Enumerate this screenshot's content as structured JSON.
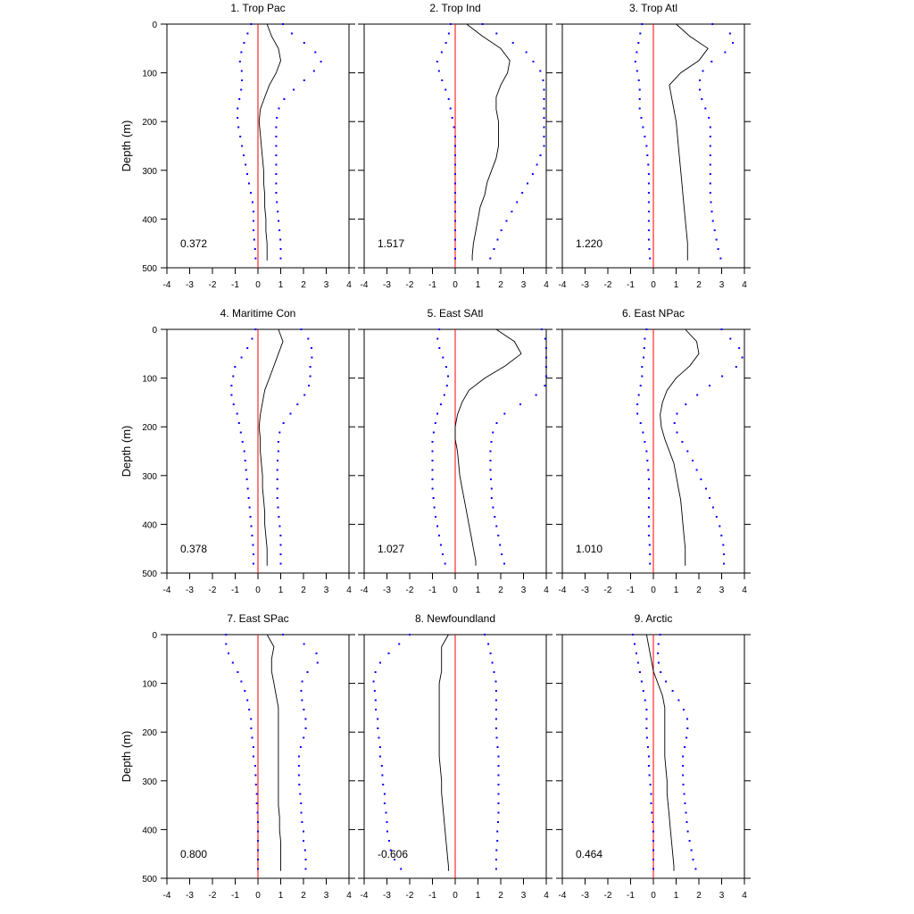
{
  "chart_data": {
    "type": "line",
    "ylabel": "Depth (m)",
    "xlim": [
      -4,
      4
    ],
    "ylim": [
      0,
      500
    ],
    "y_inverted": true,
    "x_ticks": [
      "-4",
      "-3",
      "-2",
      "-1",
      "0",
      "1",
      "2",
      "3",
      "4"
    ],
    "y_ticks": [
      "0",
      "100",
      "200",
      "300",
      "400",
      "500"
    ],
    "depths": [
      0,
      25,
      50,
      75,
      100,
      125,
      150,
      175,
      200,
      225,
      250,
      275,
      300,
      325,
      350,
      375,
      400,
      425,
      450,
      475,
      485
    ],
    "colors": {
      "mean": "#000000",
      "bounds": "#0000ff",
      "zero_line": "#ff0000"
    },
    "panels": [
      {
        "title": "1. Trop Pac",
        "stat": "0.372",
        "mean": [
          0.4,
          0.6,
          0.9,
          1.0,
          0.8,
          0.5,
          0.3,
          0.1,
          0.05,
          0.1,
          0.15,
          0.2,
          0.25,
          0.25,
          0.3,
          0.3,
          0.35,
          0.35,
          0.4,
          0.4,
          0.4
        ],
        "lower": [
          -0.3,
          -0.5,
          -0.7,
          -0.8,
          -0.7,
          -0.7,
          -0.8,
          -0.9,
          -0.9,
          -0.8,
          -0.7,
          -0.6,
          -0.5,
          -0.4,
          -0.3,
          -0.2,
          -0.2,
          -0.2,
          -0.15,
          -0.1,
          -0.1
        ],
        "upper": [
          1.1,
          1.6,
          2.4,
          2.8,
          2.4,
          1.8,
          1.2,
          0.9,
          0.8,
          0.8,
          0.8,
          0.8,
          0.8,
          0.8,
          0.8,
          0.85,
          0.9,
          0.95,
          1.0,
          1.0,
          1.0
        ]
      },
      {
        "title": "2. Trop Ind",
        "stat": "1.517",
        "mean": [
          0.5,
          1.2,
          2.0,
          2.4,
          2.3,
          2.0,
          1.8,
          1.8,
          1.9,
          1.9,
          1.9,
          1.8,
          1.6,
          1.4,
          1.3,
          1.1,
          1.0,
          0.9,
          0.8,
          0.75,
          0.75
        ],
        "lower": [
          -0.2,
          -0.3,
          -0.5,
          -0.8,
          -0.7,
          -0.5,
          -0.3,
          -0.2,
          -0.1,
          0.0,
          0.0,
          0.0,
          0.0,
          0.0,
          0.0,
          0.0,
          0.0,
          0.0,
          0.0,
          0.0,
          0.0
        ],
        "upper": [
          1.2,
          2.0,
          3.0,
          3.4,
          3.8,
          3.9,
          3.9,
          3.9,
          3.9,
          3.9,
          3.9,
          3.7,
          3.5,
          3.2,
          2.9,
          2.6,
          2.3,
          2.0,
          1.8,
          1.6,
          1.5
        ]
      },
      {
        "title": "3. Trop Atl",
        "stat": "1.220",
        "mean": [
          1.0,
          1.6,
          2.4,
          2.0,
          1.2,
          0.7,
          0.8,
          0.9,
          1.0,
          1.05,
          1.1,
          1.15,
          1.2,
          1.25,
          1.3,
          1.35,
          1.4,
          1.45,
          1.5,
          1.5,
          1.5
        ],
        "lower": [
          -0.5,
          -0.6,
          -0.7,
          -0.8,
          -0.7,
          -0.6,
          -0.6,
          -0.6,
          -0.5,
          -0.4,
          -0.3,
          -0.25,
          -0.2,
          -0.2,
          -0.2,
          -0.2,
          -0.2,
          -0.2,
          -0.2,
          -0.15,
          -0.15
        ],
        "upper": [
          2.6,
          3.6,
          3.4,
          2.6,
          2.1,
          2.0,
          2.1,
          2.3,
          2.5,
          2.5,
          2.5,
          2.5,
          2.5,
          2.5,
          2.5,
          2.55,
          2.6,
          2.7,
          2.8,
          2.9,
          3.0
        ]
      },
      {
        "title": "4. Maritime Con",
        "stat": "0.378",
        "mean": [
          0.9,
          1.1,
          0.9,
          0.7,
          0.5,
          0.3,
          0.2,
          0.1,
          0.05,
          0.1,
          0.1,
          0.15,
          0.2,
          0.2,
          0.25,
          0.3,
          0.3,
          0.35,
          0.4,
          0.4,
          0.4
        ],
        "lower": [
          -0.1,
          -0.3,
          -0.6,
          -1.0,
          -1.1,
          -1.2,
          -1.1,
          -0.9,
          -0.8,
          -0.7,
          -0.6,
          -0.55,
          -0.5,
          -0.45,
          -0.4,
          -0.35,
          -0.3,
          -0.25,
          -0.2,
          -0.2,
          -0.2
        ],
        "upper": [
          1.9,
          2.3,
          2.4,
          2.3,
          2.3,
          2.2,
          1.8,
          1.4,
          1.0,
          0.9,
          0.9,
          0.85,
          0.85,
          0.85,
          0.85,
          0.9,
          0.95,
          1.0,
          1.0,
          1.0,
          1.0
        ],
        "bounds_end": 360
      },
      {
        "title": "5. East SAtl",
        "stat": "1.027",
        "mean": [
          1.8,
          2.6,
          2.9,
          2.2,
          1.3,
          0.6,
          0.3,
          0.1,
          0.0,
          0.0,
          0.1,
          0.15,
          0.2,
          0.3,
          0.4,
          0.5,
          0.6,
          0.7,
          0.8,
          0.9,
          0.9
        ],
        "lower": [
          -0.7,
          -0.8,
          -0.6,
          -0.4,
          -0.3,
          -0.4,
          -0.6,
          -0.8,
          -0.9,
          -1.0,
          -1.0,
          -1.0,
          -1.0,
          -1.0,
          -0.95,
          -0.9,
          -0.8,
          -0.7,
          -0.6,
          -0.5,
          -0.4
        ],
        "upper": [
          3.8,
          4.0,
          4.0,
          4.0,
          4.0,
          3.9,
          3.0,
          2.1,
          1.7,
          1.6,
          1.55,
          1.55,
          1.55,
          1.6,
          1.6,
          1.7,
          1.8,
          1.9,
          2.0,
          2.1,
          2.2
        ]
      },
      {
        "title": "6. East NPac",
        "stat": "1.010",
        "mean": [
          1.4,
          1.9,
          2.0,
          1.6,
          1.0,
          0.6,
          0.4,
          0.3,
          0.35,
          0.5,
          0.7,
          0.9,
          1.0,
          1.1,
          1.2,
          1.25,
          1.3,
          1.35,
          1.4,
          1.4,
          1.4
        ],
        "lower": [
          -0.3,
          -0.4,
          -0.4,
          -0.5,
          -0.5,
          -0.6,
          -0.7,
          -0.7,
          -0.5,
          -0.4,
          -0.3,
          -0.25,
          -0.2,
          -0.2,
          -0.2,
          -0.2,
          -0.2,
          -0.2,
          -0.15,
          -0.15,
          -0.15
        ],
        "upper": [
          3.0,
          3.5,
          4.0,
          3.7,
          2.9,
          2.2,
          1.5,
          1.0,
          0.9,
          1.2,
          1.5,
          1.8,
          2.0,
          2.3,
          2.5,
          2.7,
          2.9,
          3.0,
          3.1,
          3.1,
          3.1
        ]
      },
      {
        "title": "7. East SPac",
        "stat": "0.800",
        "mean": [
          0.4,
          0.7,
          0.6,
          0.6,
          0.7,
          0.8,
          0.9,
          0.9,
          0.9,
          0.9,
          0.9,
          0.9,
          0.9,
          0.9,
          0.9,
          0.95,
          0.95,
          1.0,
          1.0,
          1.0,
          1.0
        ],
        "lower": [
          -1.4,
          -1.4,
          -1.2,
          -0.9,
          -0.7,
          -0.5,
          -0.4,
          -0.3,
          -0.3,
          -0.2,
          -0.2,
          -0.1,
          -0.1,
          -0.05,
          -0.05,
          0.0,
          0.0,
          0.0,
          0.0,
          0.0,
          0.0
        ],
        "upper": [
          1.1,
          2.3,
          2.8,
          2.2,
          1.9,
          1.9,
          2.0,
          2.1,
          2.1,
          1.9,
          1.8,
          1.8,
          1.8,
          1.85,
          1.9,
          1.9,
          2.0,
          2.0,
          2.1,
          2.1,
          2.1
        ]
      },
      {
        "title": "8. Newfoundland",
        "stat": "-0.606",
        "mean": [
          -0.3,
          -0.6,
          -0.6,
          -0.6,
          -0.7,
          -0.7,
          -0.7,
          -0.7,
          -0.7,
          -0.7,
          -0.7,
          -0.65,
          -0.6,
          -0.6,
          -0.55,
          -0.5,
          -0.45,
          -0.4,
          -0.35,
          -0.3,
          -0.3
        ],
        "lower": [
          -2.0,
          -2.6,
          -3.2,
          -3.5,
          -3.6,
          -3.5,
          -3.5,
          -3.4,
          -3.4,
          -3.3,
          -3.3,
          -3.2,
          -3.2,
          -3.1,
          -3.1,
          -3.0,
          -3.0,
          -2.9,
          -2.8,
          -2.5,
          -2.3
        ],
        "upper": [
          1.3,
          1.5,
          1.6,
          1.7,
          1.8,
          1.8,
          1.8,
          1.8,
          1.8,
          1.85,
          1.9,
          1.9,
          1.9,
          1.9,
          1.9,
          1.9,
          1.85,
          1.85,
          1.8,
          1.8,
          1.8
        ]
      },
      {
        "title": "9. Arctic",
        "stat": "0.464",
        "mean": [
          -0.3,
          -0.2,
          -0.1,
          0.0,
          0.2,
          0.4,
          0.5,
          0.5,
          0.5,
          0.5,
          0.5,
          0.55,
          0.6,
          0.6,
          0.65,
          0.7,
          0.75,
          0.8,
          0.85,
          0.9,
          0.9
        ],
        "lower": [
          -0.9,
          -0.8,
          -0.7,
          -0.6,
          -0.5,
          -0.4,
          -0.3,
          -0.3,
          -0.3,
          -0.25,
          -0.2,
          -0.2,
          -0.15,
          -0.1,
          -0.1,
          -0.05,
          0.0,
          0.0,
          0.0,
          0.0,
          0.0
        ],
        "upper": [
          0.3,
          0.2,
          0.2,
          0.3,
          0.6,
          1.0,
          1.3,
          1.5,
          1.5,
          1.4,
          1.3,
          1.3,
          1.3,
          1.35,
          1.4,
          1.45,
          1.5,
          1.6,
          1.7,
          1.8,
          1.9
        ]
      }
    ]
  }
}
